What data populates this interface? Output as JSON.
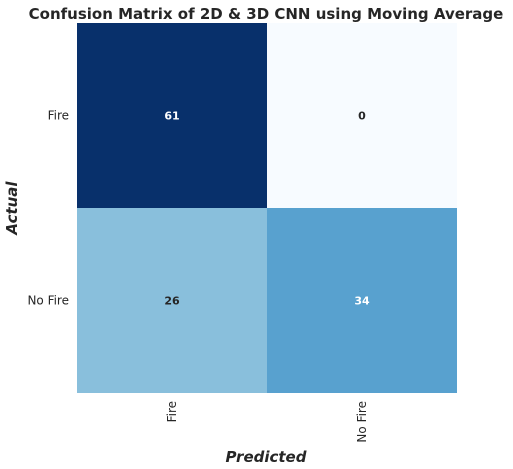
{
  "chart_data": {
    "type": "heatmap",
    "title": "Confusion Matrix of 2D & 3D CNN using Moving Average",
    "xlabel": "Predicted",
    "ylabel": "Actual",
    "x_categories": [
      "Fire",
      "No Fire"
    ],
    "y_categories": [
      "Fire",
      "No Fire"
    ],
    "values": [
      [
        61,
        0
      ],
      [
        26,
        34
      ]
    ],
    "colormap": "Blues",
    "value_range": [
      0,
      61
    ],
    "grid": false,
    "colorbar": false
  },
  "colors": {
    "text_dark": "#262626",
    "text_light": "#ffffff",
    "cmap_stops": [
      "#f7fbff",
      "#deebf7",
      "#c6dbef",
      "#9ecae1",
      "#6baed6",
      "#4292c6",
      "#2171b5",
      "#08519c",
      "#08306b"
    ]
  }
}
